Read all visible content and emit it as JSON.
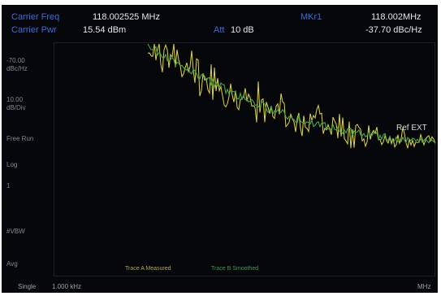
{
  "header": {
    "carrier_freq_label": "Carrier Freq",
    "carrier_freq_value": "118.002525 MHz",
    "carrier_pwr_label": "Carrier Pwr",
    "carrier_pwr_value": "15.54 dBm",
    "att_label": "Att",
    "att_value": "10 dB",
    "marker_label": "MKr1",
    "marker_freq": "118.002MHz",
    "marker_value": "-37.70 dBc/Hz"
  },
  "sidebar": {
    "items": [
      "-70.00",
      "dBc/Hz",
      "10.00",
      "dB/Div",
      "Free Run",
      "",
      "Log",
      "",
      "1",
      "",
      "",
      "#VBW",
      "",
      "",
      "Avg"
    ]
  },
  "plot": {
    "ref_label": "Ref EXT"
  },
  "legend": {
    "trace_a": "Trace A Measured",
    "trace_b": "Trace B Smoothed"
  },
  "footer": {
    "left": "Single",
    "left_value": "1.000 kHz",
    "right": "MHz"
  },
  "colors": {
    "trace_a": "#e3d832",
    "trace_b": "#46a84e",
    "label_blue": "#3e6cd8"
  }
}
